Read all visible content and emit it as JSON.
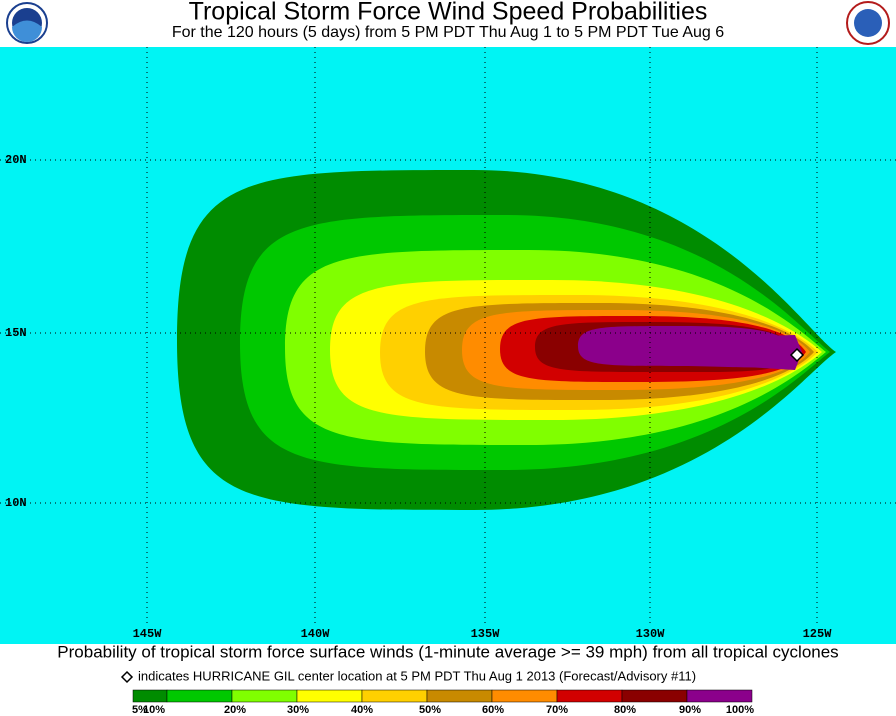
{
  "header": {
    "title": "Tropical Storm Force Wind Speed Probabilities",
    "subtitle": "For the 120 hours (5 days) from 5 PM PDT Thu Aug 1 to 5 PM PDT Tue Aug 6"
  },
  "map": {
    "latitude_labels": [
      "20N",
      "15N",
      "10N"
    ],
    "longitude_labels": [
      "145W",
      "140W",
      "135W",
      "130W",
      "125W"
    ]
  },
  "footer": {
    "caption": "Probability of tropical storm force surface winds (1-minute average >= 39 mph) from all tropical cyclones",
    "marker_note": "indicates HURRICANE GIL center location at 5 PM PDT Thu Aug 1 2013 (Forecast/Advisory #11)"
  },
  "legend": {
    "labels": [
      "5%",
      "10%",
      "20%",
      "30%",
      "40%",
      "50%",
      "60%",
      "70%",
      "80%",
      "90%",
      "100%"
    ]
  }
}
